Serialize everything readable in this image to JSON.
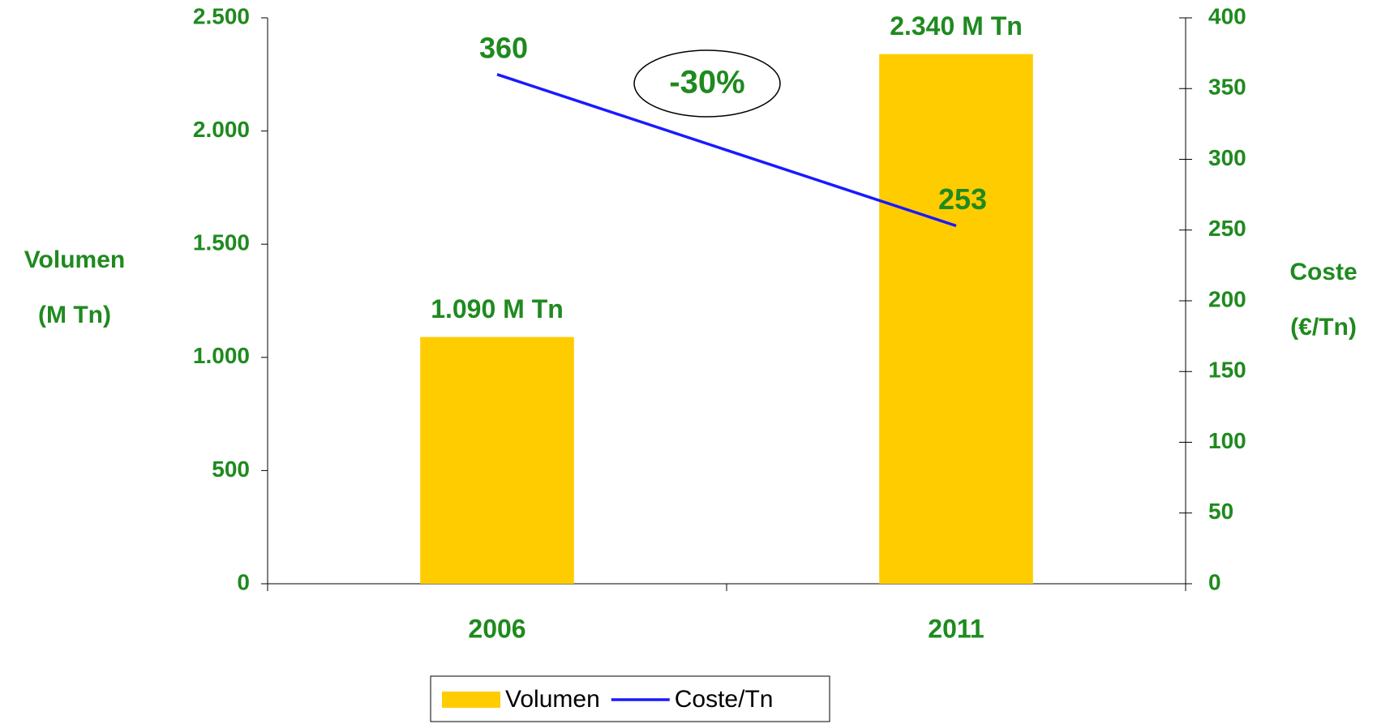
{
  "chart_data": {
    "type": "bar_line",
    "categories": [
      "2006",
      "2011"
    ],
    "series": [
      {
        "name": "Volumen",
        "type": "bar",
        "color": "#ffcc00",
        "values": [
          1090,
          2340
        ],
        "value_labels": [
          "1.090 M Tn",
          "2.340 M Tn"
        ]
      },
      {
        "name": "Coste/Tn",
        "type": "line",
        "axis": "y2",
        "color": "#1a1aff",
        "values": [
          360,
          253
        ]
      }
    ],
    "ylabel": [
      "Volumen",
      "(M Tn)"
    ],
    "y2label": [
      "Coste",
      "(€/Tn)"
    ],
    "annotation": "-30%",
    "ylim": [
      0,
      2500
    ],
    "yticks": [
      0,
      500,
      {
        "value": 1000,
        "label": "1.000"
      },
      {
        "value": 1500,
        "label": "1.500"
      },
      {
        "value": 2000,
        "label": "2.000"
      },
      {
        "value": 2500,
        "label": "2.500"
      }
    ],
    "y2lim": [
      0,
      400
    ],
    "y2ticks": [
      0,
      50,
      100,
      150,
      200,
      250,
      300,
      350,
      400
    ],
    "legend": "bottom"
  }
}
